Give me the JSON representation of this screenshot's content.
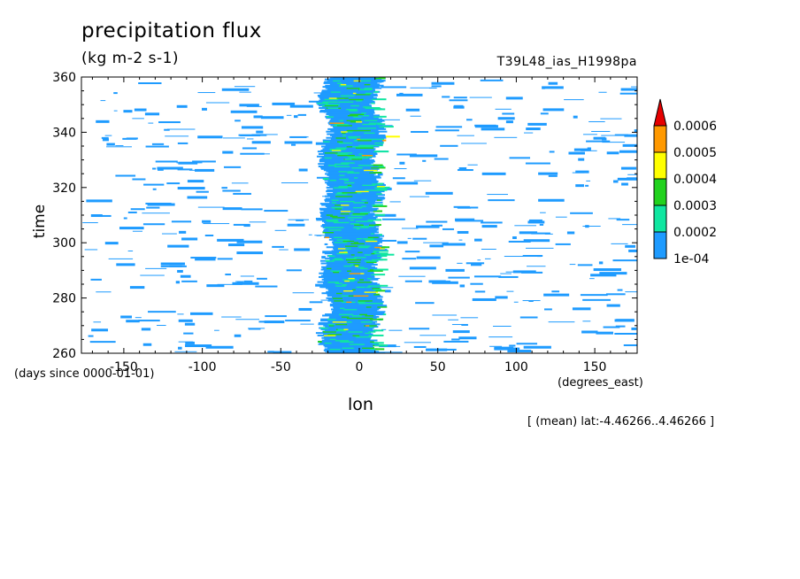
{
  "chart_data": {
    "type": "heatmap",
    "title": "precipitation flux",
    "units": "(kg m-2 s-1)",
    "run_label": "T39L48_ias_H1998pa",
    "xlabel": "lon",
    "x_units": "(degrees_east)",
    "ylabel": "time",
    "y_units": "(days since 0000-01-01)",
    "note": "[ (mean) lat:-4.46266..4.46266 ]",
    "xlim": [
      -177,
      177
    ],
    "ylim": [
      260,
      360
    ],
    "x_ticks": [
      -150,
      -100,
      -50,
      0,
      50,
      100,
      150
    ],
    "y_ticks": [
      260,
      280,
      300,
      320,
      340,
      360
    ],
    "colorbar": {
      "levels": [
        "1e-04",
        "0.0002",
        "0.0003",
        "0.0004",
        "0.0005",
        "0.0006"
      ],
      "colors": [
        "#1e9bff",
        "#10e6a0",
        "#22d21e",
        "#ffff00",
        "#ff9900",
        "#e60000"
      ],
      "extend": "max"
    },
    "features": {
      "convective_band_lon_range": [
        -25,
        15
      ],
      "convective_band_description_level_max": "0.0006"
    }
  }
}
